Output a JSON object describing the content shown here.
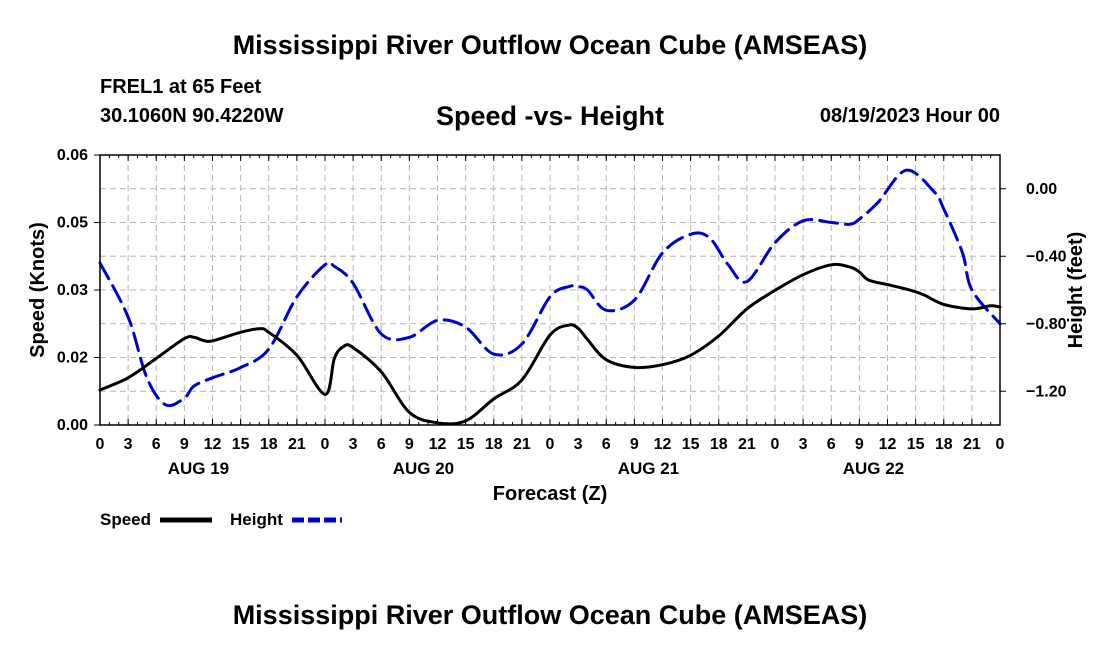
{
  "header": {
    "title": "Mississippi River Outflow Ocean Cube (AMSEAS)",
    "station": "FREL1 at 65 Feet",
    "coords": "30.1060N  90.4220W",
    "subtitle": "Speed -vs- Height",
    "datetime": "08/19/2023 Hour 00"
  },
  "footer": {
    "title": "Mississippi River Outflow Ocean Cube (AMSEAS)"
  },
  "chart_data": {
    "type": "line",
    "xlabel": "Forecast (Z)",
    "ylabel_left": "Speed (Knots)",
    "ylabel_right": "Height (feet)",
    "x_range_hours": [
      0,
      96
    ],
    "ylim_left": [
      0,
      0.06
    ],
    "ylim_right": [
      -1.4,
      0.2
    ],
    "y_ticks_left": [
      "0.00",
      "0.02",
      "0.03",
      "0.05",
      "0.06"
    ],
    "y_ticks_left_values": [
      0,
      0.015,
      0.03,
      0.045,
      0.06
    ],
    "y_ticks_right": [
      "0.00",
      "−0.40",
      "−0.80",
      "−1.20"
    ],
    "y_ticks_right_values": [
      0,
      -0.4,
      -0.8,
      -1.2
    ],
    "x_tick_labels": [
      "0",
      "3",
      "6",
      "9",
      "12",
      "15",
      "18",
      "21",
      "0",
      "3",
      "6",
      "9",
      "12",
      "15",
      "18",
      "21",
      "0",
      "3",
      "6",
      "9",
      "12",
      "15",
      "18",
      "21",
      "0",
      "3",
      "6",
      "9",
      "12",
      "15",
      "18",
      "21",
      "0"
    ],
    "date_labels": [
      {
        "label": "AUG 19",
        "hour": 10.5
      },
      {
        "label": "AUG 20",
        "hour": 34.5
      },
      {
        "label": "AUG 21",
        "hour": 58.5
      },
      {
        "label": "AUG 22",
        "hour": 82.5
      }
    ],
    "grid": true,
    "series": [
      {
        "name": "Speed",
        "axis": "left",
        "color": "#000000",
        "dash": "solid",
        "x": [
          0,
          3,
          6,
          9,
          10,
          11,
          12,
          15,
          17,
          18,
          21,
          24,
          25,
          26,
          27,
          30,
          33,
          36,
          39,
          42,
          45,
          48,
          50,
          51,
          52,
          54,
          57,
          60,
          63,
          66,
          69,
          72,
          75,
          78,
          80,
          81,
          82,
          84,
          86,
          87,
          88,
          90,
          93,
          95,
          96
        ],
        "y": [
          0.0078,
          0.0105,
          0.0148,
          0.0192,
          0.0195,
          0.0188,
          0.0187,
          0.0206,
          0.0214,
          0.0206,
          0.0155,
          0.0068,
          0.0148,
          0.0175,
          0.0172,
          0.0118,
          0.0028,
          0.0005,
          0.0009,
          0.0058,
          0.01,
          0.02,
          0.0222,
          0.0215,
          0.019,
          0.0145,
          0.0128,
          0.0134,
          0.0155,
          0.0198,
          0.0258,
          0.0299,
          0.0334,
          0.0356,
          0.0351,
          0.034,
          0.0322,
          0.0312,
          0.0302,
          0.0296,
          0.0288,
          0.0268,
          0.0258,
          0.0265,
          0.0262
        ]
      },
      {
        "name": "Height",
        "axis": "right",
        "color": "#0000cc",
        "dash": "dashed",
        "x": [
          0,
          3,
          5,
          7,
          9,
          10,
          12,
          15,
          18,
          21,
          24,
          25,
          27,
          30,
          33,
          36,
          39,
          42,
          45,
          48,
          50,
          51,
          52,
          54,
          57,
          60,
          63,
          65,
          67,
          69,
          72,
          75,
          78,
          80,
          81,
          83,
          86,
          89,
          90,
          92,
          93,
          96
        ],
        "y": [
          -0.44,
          -0.76,
          -1.12,
          -1.28,
          -1.24,
          -1.17,
          -1.12,
          -1.06,
          -0.95,
          -0.64,
          -0.45,
          -0.46,
          -0.56,
          -0.86,
          -0.88,
          -0.78,
          -0.82,
          -0.98,
          -0.92,
          -0.64,
          -0.58,
          -0.58,
          -0.6,
          -0.72,
          -0.66,
          -0.38,
          -0.27,
          -0.29,
          -0.45,
          -0.55,
          -0.32,
          -0.19,
          -0.2,
          -0.21,
          -0.18,
          -0.08,
          0.11,
          -0.02,
          -0.12,
          -0.38,
          -0.6,
          -0.8
        ]
      }
    ],
    "legend": {
      "placement": "bottom-left",
      "entries": [
        "Speed",
        "Height"
      ]
    }
  }
}
